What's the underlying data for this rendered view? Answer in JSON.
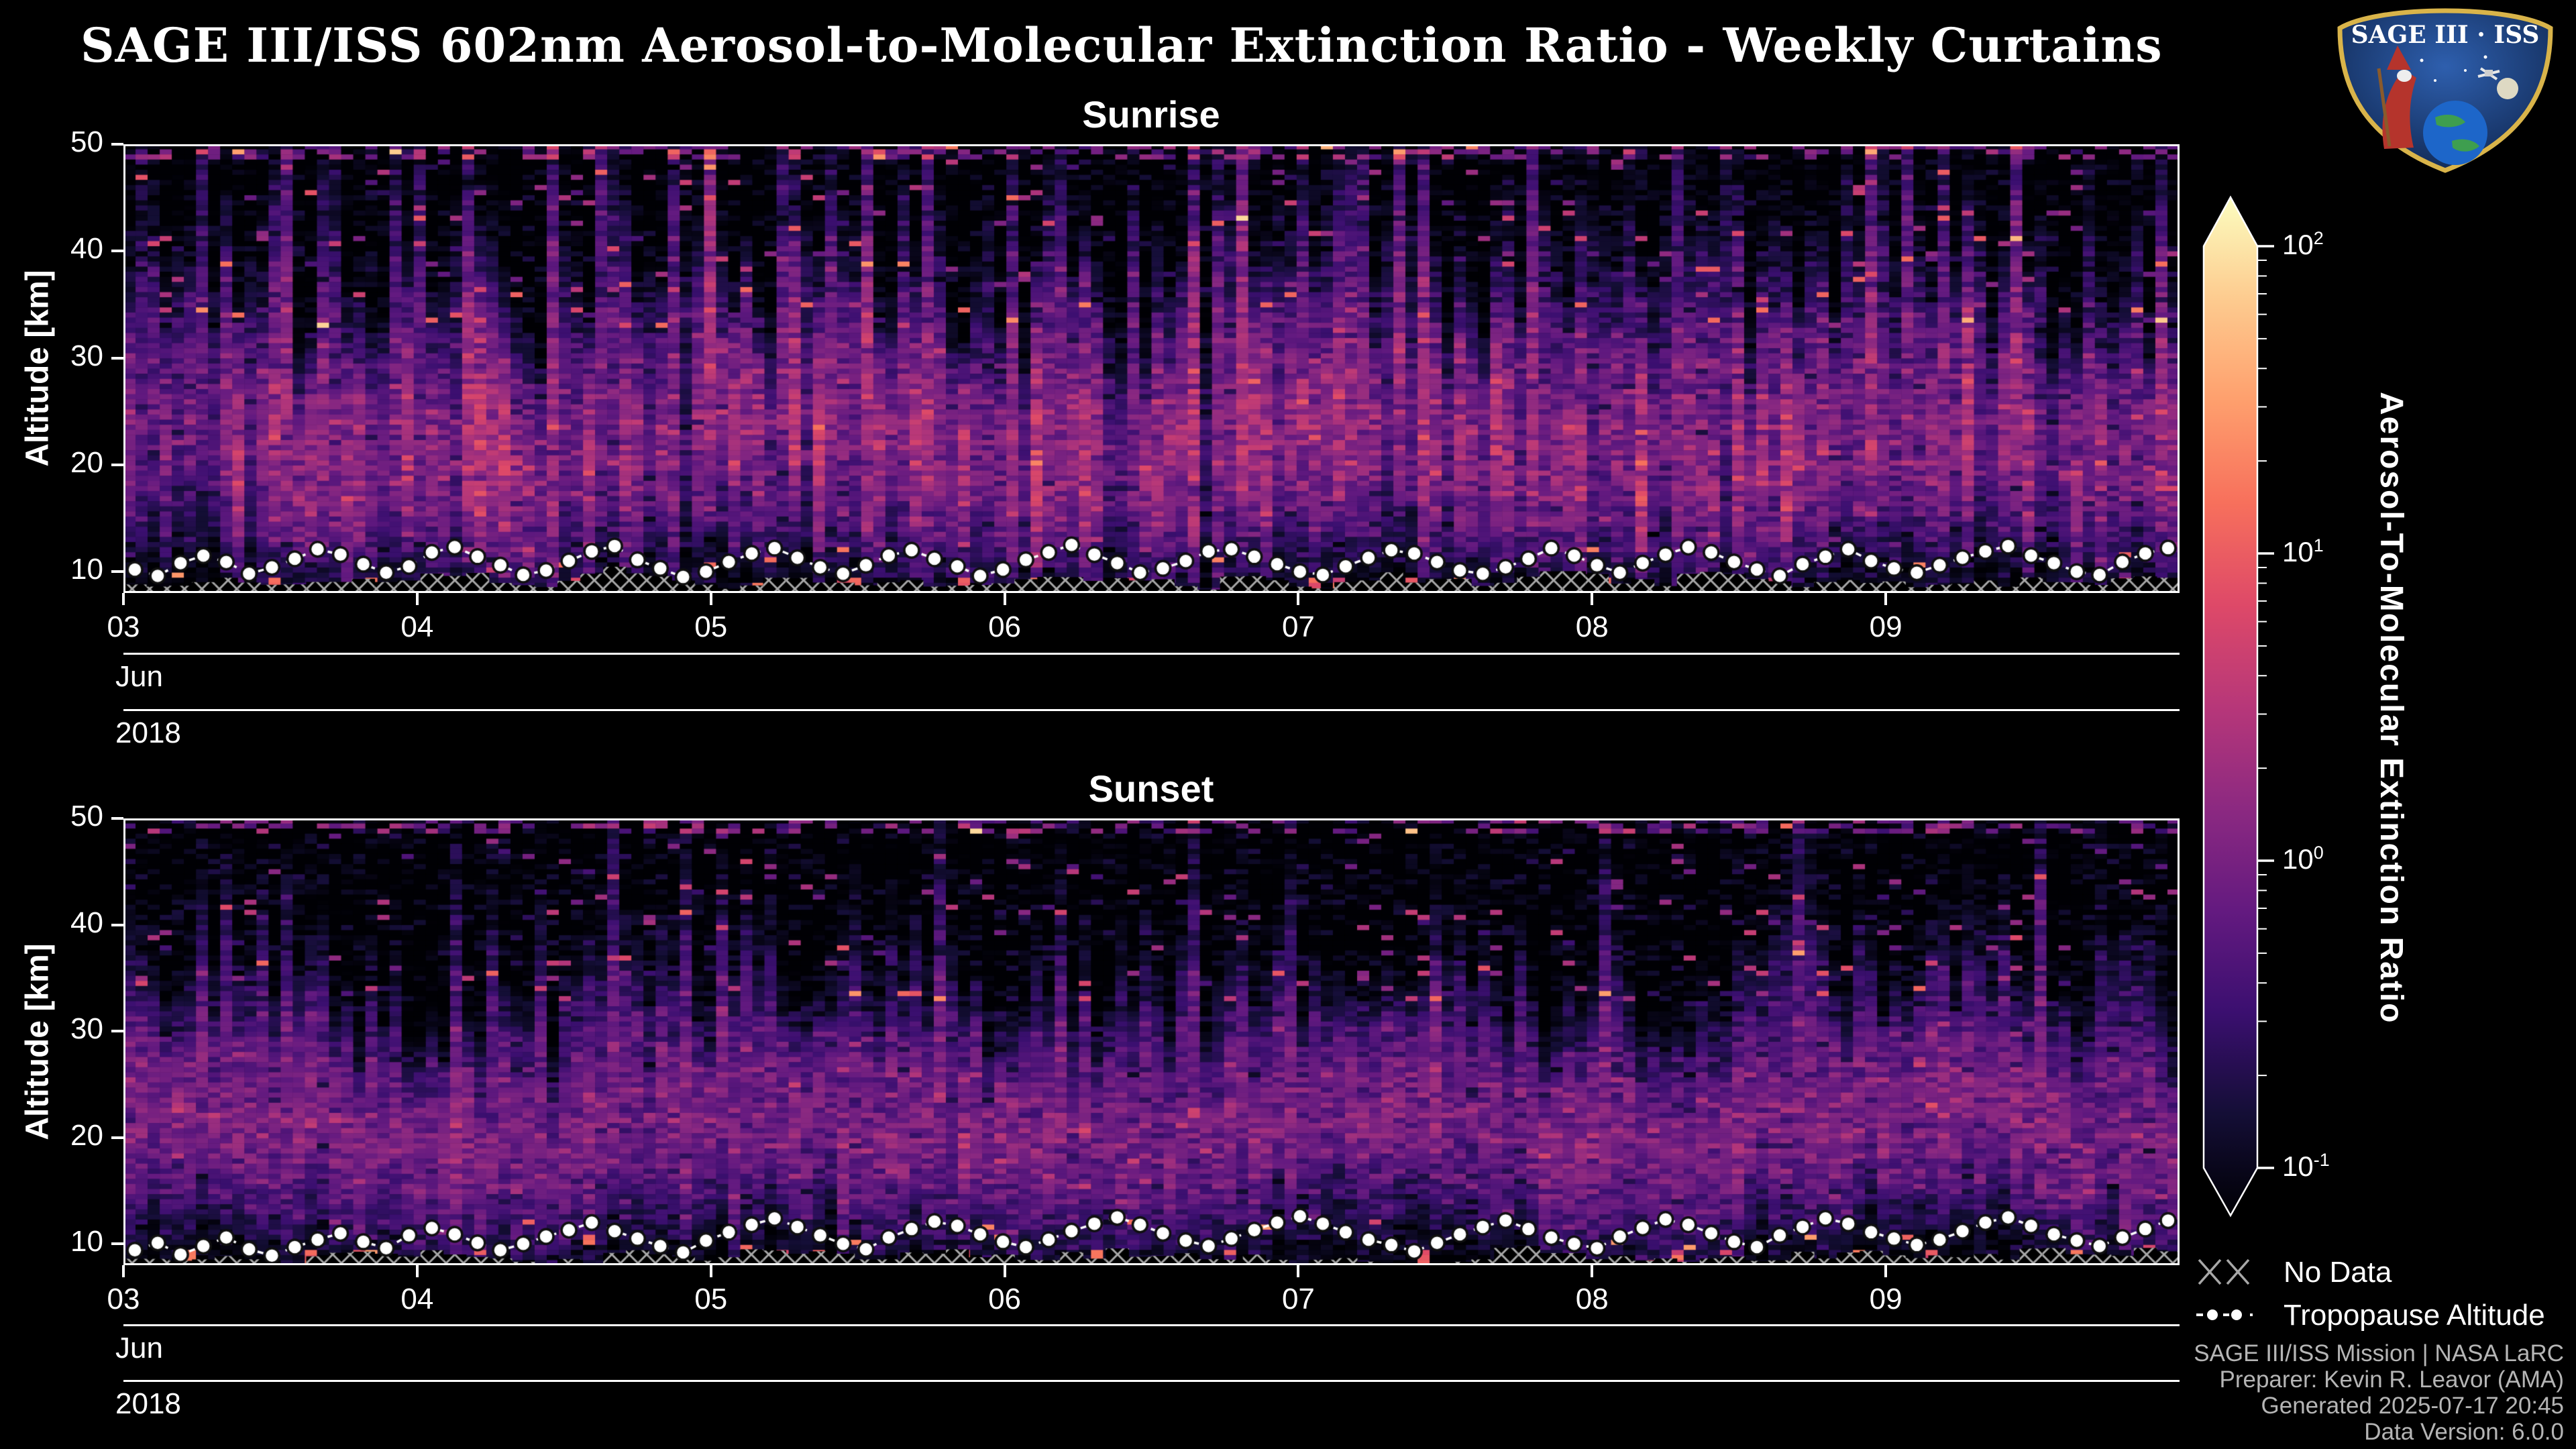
{
  "page": {
    "title": "SAGE III/ISS 602nm Aerosol-to-Molecular Extinction Ratio - Weekly Curtains",
    "background": "#000000"
  },
  "logo": {
    "text": "SAGE III · ISS"
  },
  "colorbar": {
    "label": "Aerosol-To-Molecular Extinction Ratio",
    "scale": "log10",
    "colormap": "magma",
    "extend": "both",
    "ticks": [
      {
        "base": "10",
        "exp": "2",
        "value": 100
      },
      {
        "base": "10",
        "exp": "1",
        "value": 10
      },
      {
        "base": "10",
        "exp": "0",
        "value": 1
      },
      {
        "base": "10",
        "exp": "-1",
        "value": 0.1
      }
    ],
    "stops": [
      [
        0.0,
        "#000004"
      ],
      [
        0.1,
        "#140e36"
      ],
      [
        0.2,
        "#3b0f70"
      ],
      [
        0.3,
        "#641a80"
      ],
      [
        0.4,
        "#8c2981"
      ],
      [
        0.5,
        "#b73779"
      ],
      [
        0.6,
        "#de4968"
      ],
      [
        0.7,
        "#f7705c"
      ],
      [
        0.8,
        "#fe9f6d"
      ],
      [
        0.9,
        "#fdcb8f"
      ],
      [
        1.0,
        "#fcfdbf"
      ]
    ]
  },
  "legend": {
    "no_data": "No Data",
    "tropopause": "Tropopause Altitude",
    "no_data_color": "#a8a8a8",
    "marker_color": "#ffffff"
  },
  "credits": {
    "line1": "SAGE III/ISS Mission | NASA LaRC",
    "line2": "Preparer: Kevin R. Leavor (AMA)",
    "line3": "Generated 2025-07-17 20:45",
    "line4": "Data Version: 6.0.0"
  },
  "chart_data": [
    {
      "type": "heatmap",
      "title": "Sunrise",
      "ylabel": "Altitude [km]",
      "ylim": [
        8,
        50
      ],
      "yticks": [
        10,
        20,
        30,
        40,
        50
      ],
      "xticks": [
        "03",
        "04",
        "05",
        "06",
        "07",
        "08",
        "09"
      ],
      "x_month": "Jun",
      "x_year": "2018",
      "x_range_days": [
        3,
        10
      ],
      "clim": [
        0.1,
        100
      ],
      "colormap": "magma",
      "value_label": "Aerosol-To-Molecular Extinction Ratio",
      "texture": {
        "seed": 603,
        "cols": 170,
        "rows": 88,
        "band_center_km": 21.5,
        "band_sigma_km": 5.3,
        "band_amp": 1.15,
        "background_value": 0.085,
        "streakiness": 0.5,
        "noise_sigma": 0.55
      },
      "tropopause_km": [
        10.2,
        9.6,
        10.8,
        11.5,
        10.9,
        9.8,
        10.4,
        11.2,
        12.1,
        11.6,
        10.7,
        9.9,
        10.5,
        11.8,
        12.3,
        11.4,
        10.6,
        9.7,
        10.1,
        11.0,
        11.9,
        12.4,
        11.1,
        10.3,
        9.5,
        10.0,
        10.9,
        11.7,
        12.2,
        11.3,
        10.4,
        9.8,
        10.6,
        11.5,
        12.0,
        11.2,
        10.5,
        9.6,
        10.2,
        11.1,
        11.8,
        12.5,
        11.6,
        10.8,
        9.9,
        10.3,
        11.0,
        11.9,
        12.1,
        11.4,
        10.7,
        10.0,
        9.7,
        10.5,
        11.3,
        12.0,
        11.7,
        10.9,
        10.1,
        9.8,
        10.4,
        11.2,
        12.2,
        11.5,
        10.6,
        9.9,
        10.8,
        11.6,
        12.3,
        11.8,
        10.9,
        10.2,
        9.6,
        10.7,
        11.4,
        12.1,
        11.0,
        10.3,
        9.9,
        10.6,
        11.3,
        11.9,
        12.4,
        11.5,
        10.8,
        10.0,
        9.7,
        10.9,
        11.7,
        12.2
      ]
    },
    {
      "type": "heatmap",
      "title": "Sunset",
      "ylabel": "Altitude [km]",
      "ylim": [
        8,
        50
      ],
      "yticks": [
        10,
        20,
        30,
        40,
        50
      ],
      "xticks": [
        "03",
        "04",
        "05",
        "06",
        "07",
        "08",
        "09"
      ],
      "x_month": "Jun",
      "x_year": "2018",
      "x_range_days": [
        3,
        10
      ],
      "clim": [
        0.1,
        100
      ],
      "colormap": "magma",
      "value_label": "Aerosol-To-Molecular Extinction Ratio",
      "texture": {
        "seed": 918,
        "cols": 170,
        "rows": 88,
        "band_center_km": 21.0,
        "band_sigma_km": 5.0,
        "band_amp": 1.0,
        "background_value": 0.085,
        "streakiness": 0.18,
        "noise_sigma": 0.5
      },
      "tropopause_km": [
        9.4,
        10.1,
        9.0,
        9.8,
        10.6,
        9.5,
        8.9,
        9.7,
        10.4,
        11.0,
        10.2,
        9.6,
        10.8,
        11.5,
        10.9,
        10.1,
        9.4,
        10.0,
        10.7,
        11.3,
        12.0,
        11.2,
        10.5,
        9.8,
        9.2,
        10.3,
        11.1,
        11.8,
        12.4,
        11.6,
        10.8,
        10.0,
        9.5,
        10.6,
        11.4,
        12.1,
        11.7,
        10.9,
        10.2,
        9.7,
        10.4,
        11.2,
        11.9,
        12.5,
        11.8,
        11.0,
        10.3,
        9.8,
        10.5,
        11.3,
        12.0,
        12.6,
        11.9,
        11.1,
        10.4,
        9.9,
        9.3,
        10.1,
        10.9,
        11.6,
        12.2,
        11.4,
        10.6,
        10.0,
        9.6,
        10.7,
        11.5,
        12.3,
        11.8,
        11.0,
        10.2,
        9.7,
        10.8,
        11.6,
        12.4,
        11.9,
        11.1,
        10.5,
        9.9,
        10.4,
        11.2,
        12.0,
        12.5,
        11.7,
        10.9,
        10.3,
        9.8,
        10.6,
        11.4,
        12.2
      ]
    }
  ]
}
